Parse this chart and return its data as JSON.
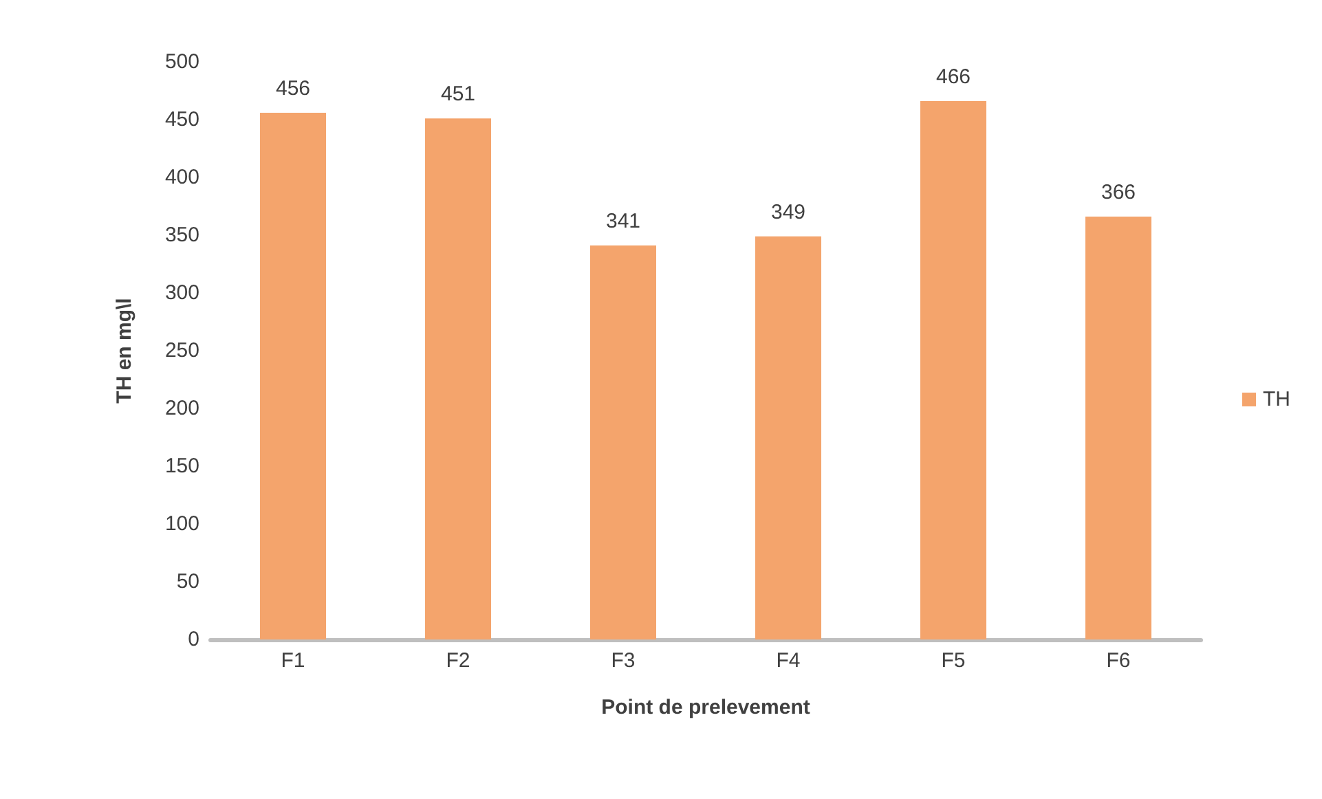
{
  "chart_data": {
    "type": "bar",
    "xlabel": "Point de prelevement",
    "ylabel": "TH en mg\\l",
    "categories": [
      "F1",
      "F2",
      "F3",
      "F4",
      "F5",
      "F6"
    ],
    "series": [
      {
        "name": "TH",
        "color": "#f4a46c",
        "values": [
          456,
          451,
          341,
          349,
          466,
          366
        ]
      }
    ],
    "ylim": [
      0,
      500
    ],
    "yticks": [
      0,
      50,
      100,
      150,
      200,
      250,
      300,
      350,
      400,
      450,
      500
    ],
    "grid": false,
    "legend": "right",
    "data_labels": true
  }
}
